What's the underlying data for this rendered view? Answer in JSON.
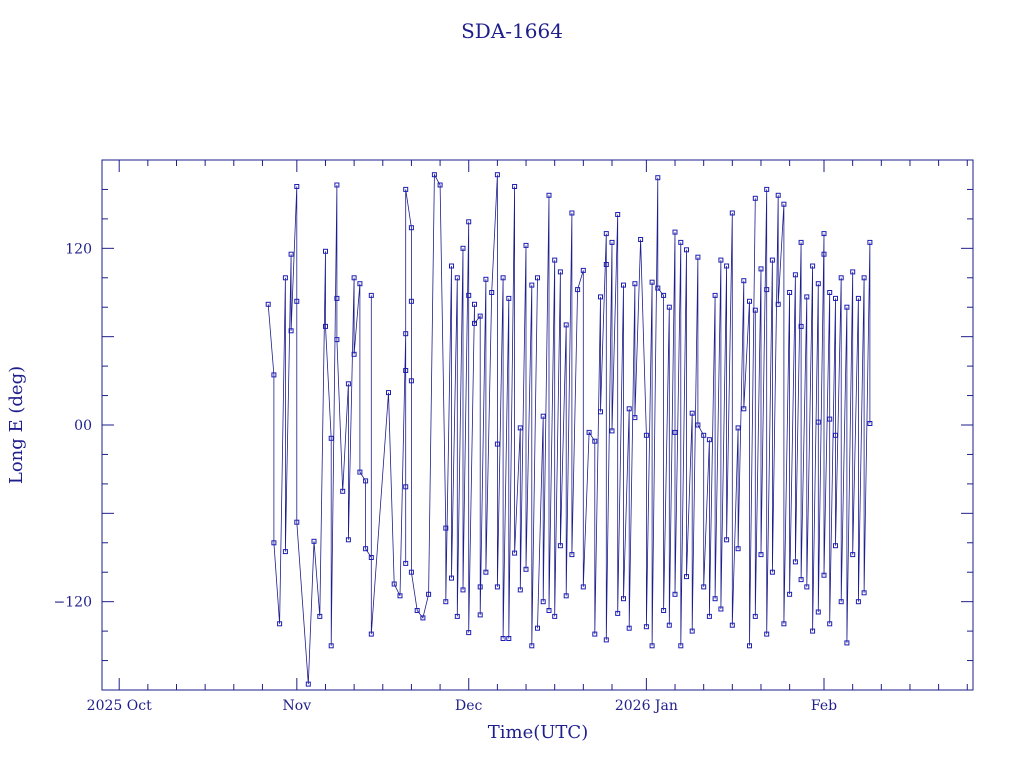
{
  "chart_data": {
    "type": "scatter",
    "title": "SDA-1664",
    "xlabel": "Time(UTC)",
    "ylabel": "Long E (deg)",
    "xlim": [
      "2025-09-28",
      "2026-02-27"
    ],
    "ylim": [
      -180,
      180
    ],
    "x_ticks": [
      {
        "date": "2025-10-01",
        "label": "2025 Oct"
      },
      {
        "date": "2025-11-01",
        "label": "Nov"
      },
      {
        "date": "2025-12-01",
        "label": "Dec"
      },
      {
        "date": "2026-01-01",
        "label": "2026 Jan"
      },
      {
        "date": "2026-02-01",
        "label": "Feb"
      }
    ],
    "y_ticks": [
      {
        "value": 120,
        "label": "120"
      },
      {
        "value": 0,
        "label": "00"
      },
      {
        "value": -120,
        "label": "−120"
      }
    ],
    "grid": false,
    "legend": "none",
    "series": [
      {
        "points": [
          [
            "2025-10-27",
            82
          ],
          [
            "2025-10-28",
            34
          ],
          [
            "2025-10-28",
            -80
          ],
          [
            "2025-10-29",
            -135
          ],
          [
            "2025-10-30",
            100
          ],
          [
            "2025-10-30",
            -86
          ],
          [
            "2025-10-31",
            116
          ],
          [
            "2025-10-31",
            64
          ],
          [
            "2025-11-01",
            162
          ],
          [
            "2025-11-01",
            84
          ],
          [
            "2025-11-01",
            -66
          ],
          [
            "2025-11-03",
            -176
          ],
          [
            "2025-11-04",
            -79
          ],
          [
            "2025-11-05",
            -130
          ],
          [
            "2025-11-06",
            118
          ],
          [
            "2025-11-06",
            67
          ],
          [
            "2025-11-07",
            -9
          ],
          [
            "2025-11-07",
            -150
          ],
          [
            "2025-11-08",
            163
          ],
          [
            "2025-11-08",
            86
          ],
          [
            "2025-11-08",
            58
          ],
          [
            "2025-11-09",
            -45
          ],
          [
            "2025-11-10",
            28
          ],
          [
            "2025-11-10",
            -78
          ],
          [
            "2025-11-11",
            100
          ],
          [
            "2025-11-11",
            48
          ],
          [
            "2025-11-12",
            96
          ],
          [
            "2025-11-12",
            -32
          ],
          [
            "2025-11-13",
            -38
          ],
          [
            "2025-11-13",
            -84
          ],
          [
            "2025-11-14",
            -90
          ],
          [
            "2025-11-14",
            88
          ],
          [
            "2025-11-14",
            -142
          ],
          [
            "2025-11-17",
            22
          ],
          [
            "2025-11-18",
            -108
          ],
          [
            "2025-11-19",
            -116
          ],
          [
            "2025-11-20",
            62
          ],
          [
            "2025-11-20",
            37
          ],
          [
            "2025-11-20",
            -42
          ],
          [
            "2025-11-20",
            -94
          ],
          [
            "2025-11-20",
            160
          ],
          [
            "2025-11-21",
            134
          ],
          [
            "2025-11-21",
            84
          ],
          [
            "2025-11-21",
            30
          ],
          [
            "2025-11-21",
            -100
          ],
          [
            "2025-11-22",
            -126
          ],
          [
            "2025-11-23",
            -131
          ],
          [
            "2025-11-24",
            -115
          ],
          [
            "2025-11-25",
            170
          ],
          [
            "2025-11-26",
            163
          ],
          [
            "2025-11-27",
            -70
          ],
          [
            "2025-11-27",
            -120
          ],
          [
            "2025-11-28",
            108
          ],
          [
            "2025-11-28",
            -104
          ],
          [
            "2025-11-29",
            100
          ],
          [
            "2025-11-29",
            -130
          ],
          [
            "2025-11-30",
            120
          ],
          [
            "2025-11-30",
            -112
          ],
          [
            "2025-12-01",
            138
          ],
          [
            "2025-12-01",
            88
          ],
          [
            "2025-12-01",
            -141
          ],
          [
            "2025-12-02",
            82
          ],
          [
            "2025-12-02",
            69
          ],
          [
            "2025-12-03",
            74
          ],
          [
            "2025-12-03",
            -110
          ],
          [
            "2025-12-03",
            -129
          ],
          [
            "2025-12-04",
            99
          ],
          [
            "2025-12-04",
            -100
          ],
          [
            "2025-12-05",
            90
          ],
          [
            "2025-12-06",
            170
          ],
          [
            "2025-12-06",
            -13
          ],
          [
            "2025-12-06",
            -110
          ],
          [
            "2025-12-07",
            100
          ],
          [
            "2025-12-07",
            -145
          ],
          [
            "2025-12-08",
            86
          ],
          [
            "2025-12-08",
            -145
          ],
          [
            "2025-12-09",
            162
          ],
          [
            "2025-12-09",
            -87
          ],
          [
            "2025-12-10",
            -2
          ],
          [
            "2025-12-10",
            -112
          ],
          [
            "2025-12-11",
            122
          ],
          [
            "2025-12-11",
            -98
          ],
          [
            "2025-12-12",
            95
          ],
          [
            "2025-12-12",
            -150
          ],
          [
            "2025-12-13",
            100
          ]
        ]
      },
      {
        "points": [
          [
            "2025-12-13",
            -138
          ],
          [
            "2025-12-14",
            6
          ],
          [
            "2025-12-14",
            -120
          ],
          [
            "2025-12-15",
            156
          ],
          [
            "2025-12-15",
            -126
          ],
          [
            "2025-12-16",
            112
          ],
          [
            "2025-12-16",
            -130
          ],
          [
            "2025-12-17",
            104
          ],
          [
            "2025-12-17",
            -82
          ],
          [
            "2025-12-18",
            68
          ],
          [
            "2025-12-18",
            -116
          ],
          [
            "2025-12-19",
            144
          ],
          [
            "2025-12-19",
            -88
          ],
          [
            "2025-12-20",
            92
          ],
          [
            "2025-12-21",
            105
          ],
          [
            "2025-12-21",
            -110
          ],
          [
            "2025-12-22",
            -5
          ],
          [
            "2025-12-23",
            -11
          ],
          [
            "2025-12-23",
            -142
          ],
          [
            "2025-12-24",
            87
          ],
          [
            "2025-12-24",
            9
          ],
          [
            "2025-12-25",
            130
          ],
          [
            "2025-12-25",
            109
          ],
          [
            "2025-12-25",
            -146
          ],
          [
            "2025-12-26",
            124
          ],
          [
            "2025-12-26",
            -4
          ],
          [
            "2025-12-27",
            143
          ],
          [
            "2025-12-27",
            -128
          ],
          [
            "2025-12-28",
            95
          ],
          [
            "2025-12-28",
            -118
          ],
          [
            "2025-12-29",
            11
          ],
          [
            "2025-12-29",
            -138
          ],
          [
            "2025-12-30",
            96
          ],
          [
            "2025-12-30",
            5
          ],
          [
            "2025-12-31",
            126
          ],
          [
            "2026-01-01",
            -7
          ],
          [
            "2026-01-01",
            -137
          ],
          [
            "2026-01-02",
            97
          ],
          [
            "2026-01-02",
            -150
          ],
          [
            "2026-01-03",
            168
          ],
          [
            "2026-01-03",
            93
          ],
          [
            "2026-01-04",
            88
          ],
          [
            "2026-01-04",
            -126
          ],
          [
            "2026-01-05",
            80
          ],
          [
            "2026-01-05",
            -136
          ],
          [
            "2026-01-06",
            131
          ],
          [
            "2026-01-06",
            -5
          ],
          [
            "2026-01-06",
            -115
          ],
          [
            "2026-01-07",
            124
          ],
          [
            "2026-01-07",
            -150
          ],
          [
            "2026-01-08",
            119
          ],
          [
            "2026-01-08",
            -103
          ],
          [
            "2026-01-09",
            8
          ],
          [
            "2026-01-09",
            -140
          ],
          [
            "2026-01-10",
            114
          ],
          [
            "2026-01-10",
            0
          ],
          [
            "2026-01-11",
            -7
          ],
          [
            "2026-01-11",
            -110
          ],
          [
            "2026-01-12",
            -10
          ],
          [
            "2026-01-12",
            -130
          ],
          [
            "2026-01-13",
            88
          ],
          [
            "2026-01-13",
            -118
          ],
          [
            "2026-01-14",
            112
          ],
          [
            "2026-01-14",
            -125
          ],
          [
            "2026-01-15",
            108
          ],
          [
            "2026-01-15",
            -78
          ],
          [
            "2026-01-16",
            144
          ],
          [
            "2026-01-16",
            -136
          ],
          [
            "2026-01-17",
            -2
          ],
          [
            "2026-01-17",
            -84
          ],
          [
            "2026-01-18",
            98
          ],
          [
            "2026-01-18",
            11
          ],
          [
            "2026-01-19",
            84
          ],
          [
            "2026-01-19",
            -150
          ],
          [
            "2026-01-20",
            154
          ]
        ]
      },
      {
        "points": [
          [
            "2026-01-20",
            78
          ],
          [
            "2026-01-20",
            -130
          ],
          [
            "2026-01-21",
            106
          ],
          [
            "2026-01-21",
            -88
          ],
          [
            "2026-01-22",
            160
          ],
          [
            "2026-01-22",
            92
          ],
          [
            "2026-01-22",
            -142
          ],
          [
            "2026-01-23",
            112
          ],
          [
            "2026-01-23",
            -100
          ],
          [
            "2026-01-24",
            156
          ],
          [
            "2026-01-24",
            82
          ],
          [
            "2026-01-25",
            150
          ],
          [
            "2026-01-25",
            -135
          ],
          [
            "2026-01-26",
            90
          ],
          [
            "2026-01-26",
            -115
          ],
          [
            "2026-01-27",
            102
          ],
          [
            "2026-01-27",
            -93
          ],
          [
            "2026-01-28",
            124
          ],
          [
            "2026-01-28",
            67
          ],
          [
            "2026-01-28",
            -105
          ],
          [
            "2026-01-29",
            87
          ],
          [
            "2026-01-29",
            -110
          ],
          [
            "2026-01-30",
            108
          ],
          [
            "2026-01-30",
            -140
          ],
          [
            "2026-01-31",
            96
          ],
          [
            "2026-01-31",
            2
          ],
          [
            "2026-01-31",
            -127
          ],
          [
            "2026-02-01",
            130
          ],
          [
            "2026-02-01",
            116
          ],
          [
            "2026-02-01",
            -102
          ],
          [
            "2026-02-02",
            90
          ],
          [
            "2026-02-02",
            4
          ],
          [
            "2026-02-02",
            -135
          ],
          [
            "2026-02-03",
            86
          ],
          [
            "2026-02-03",
            -7
          ],
          [
            "2026-02-03",
            -82
          ],
          [
            "2026-02-04",
            100
          ],
          [
            "2026-02-04",
            -120
          ],
          [
            "2026-02-05",
            80
          ],
          [
            "2026-02-05",
            -148
          ],
          [
            "2026-02-06",
            104
          ],
          [
            "2026-02-06",
            -88
          ],
          [
            "2026-02-07",
            86
          ],
          [
            "2026-02-07",
            -120
          ],
          [
            "2026-02-08",
            100
          ],
          [
            "2026-02-08",
            -114
          ],
          [
            "2026-02-09",
            124
          ],
          [
            "2026-02-09",
            1
          ]
        ]
      }
    ]
  }
}
